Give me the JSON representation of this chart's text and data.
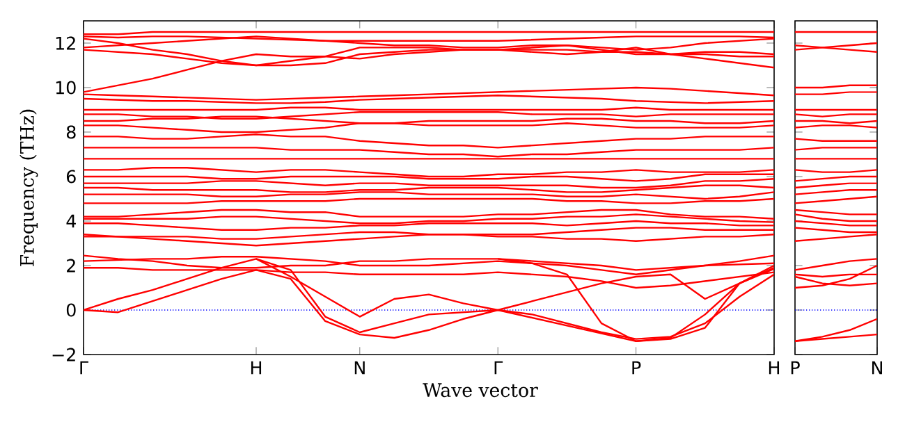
{
  "chart_data": [
    {
      "type": "line",
      "xlabel": "Wave vector",
      "ylabel": "Frequency (THz)",
      "ylim": [
        -2,
        13
      ],
      "categories": [
        "Γ",
        null,
        null,
        null,
        null,
        "H",
        null,
        null,
        "N",
        null,
        null,
        null,
        "Γ",
        null,
        null,
        null,
        "P",
        null,
        null,
        null,
        "H"
      ],
      "yticks": [
        {
          "value": -2,
          "label": "−2"
        },
        0,
        2,
        4,
        6,
        8,
        10,
        12
      ],
      "ref_lines": [
        {
          "axis": "y",
          "value": 0,
          "color": "#0000ff",
          "line_style": "dotted"
        }
      ],
      "series": [
        {
          "color": "#ff0000",
          "values": [
            12.4,
            12.4,
            12.5,
            12.5,
            12.5,
            12.5,
            12.5,
            12.5,
            12.5,
            12.5,
            12.5,
            12.5,
            12.5,
            12.5,
            12.5,
            12.5,
            12.5,
            12.5,
            12.5,
            12.5,
            12.5
          ]
        },
        {
          "color": "#ff0000",
          "values": [
            12.3,
            12.25,
            12.3,
            12.3,
            12.25,
            12.2,
            12.15,
            12.1,
            12.1,
            12.1,
            12.1,
            12.1,
            12.1,
            12.15,
            12.2,
            12.25,
            12.3,
            12.3,
            12.3,
            12.3,
            12.25
          ]
        },
        {
          "color": "#ff0000",
          "values": [
            11.8,
            11.9,
            12.0,
            12.1,
            12.2,
            12.3,
            12.2,
            12.1,
            12.0,
            11.9,
            11.9,
            11.8,
            11.8,
            11.9,
            11.9,
            11.8,
            11.7,
            11.8,
            12.0,
            12.1,
            12.2
          ]
        },
        {
          "color": "#ff0000",
          "values": [
            11.7,
            11.6,
            11.5,
            11.3,
            11.1,
            11.0,
            11.2,
            11.4,
            11.8,
            11.8,
            11.8,
            11.7,
            11.7,
            11.7,
            11.7,
            11.6,
            11.6,
            11.5,
            11.5,
            11.4,
            11.4
          ]
        },
        {
          "color": "#ff0000",
          "values": [
            12.2,
            12.0,
            11.7,
            11.5,
            11.2,
            11.0,
            11.0,
            11.1,
            11.5,
            11.6,
            11.7,
            11.7,
            11.7,
            11.6,
            11.5,
            11.6,
            11.8,
            11.5,
            11.3,
            11.1,
            10.9
          ]
        },
        {
          "color": "#ff0000",
          "values": [
            9.8,
            10.1,
            10.4,
            10.8,
            11.2,
            11.5,
            11.4,
            11.4,
            11.3,
            11.5,
            11.6,
            11.7,
            11.7,
            11.8,
            11.9,
            11.7,
            11.5,
            11.5,
            11.6,
            11.6,
            11.5
          ]
        },
        {
          "color": "#ff0000",
          "values": [
            9.7,
            9.65,
            9.6,
            9.55,
            9.5,
            9.45,
            9.5,
            9.55,
            9.6,
            9.65,
            9.7,
            9.75,
            9.8,
            9.85,
            9.9,
            9.95,
            10.0,
            9.95,
            9.85,
            9.75,
            9.65
          ]
        },
        {
          "color": "#ff0000",
          "values": [
            9.5,
            9.45,
            9.4,
            9.4,
            9.35,
            9.3,
            9.3,
            9.35,
            9.45,
            9.5,
            9.55,
            9.6,
            9.65,
            9.6,
            9.55,
            9.5,
            9.4,
            9.35,
            9.3,
            9.35,
            9.4
          ]
        },
        {
          "color": "#ff0000",
          "values": [
            9.0,
            9.0,
            9.0,
            9.0,
            9.0,
            9.0,
            9.1,
            9.1,
            9.0,
            9.0,
            9.0,
            9.0,
            9.0,
            9.0,
            9.0,
            9.0,
            9.1,
            9.0,
            9.0,
            9.0,
            9.0
          ]
        },
        {
          "color": "#ff0000",
          "values": [
            8.8,
            8.8,
            8.7,
            8.7,
            8.6,
            8.6,
            8.7,
            8.8,
            8.9,
            8.9,
            8.9,
            8.9,
            8.9,
            8.8,
            8.8,
            8.8,
            8.7,
            8.8,
            8.8,
            8.8,
            8.8
          ]
        },
        {
          "color": "#ff0000",
          "values": [
            8.5,
            8.5,
            8.6,
            8.6,
            8.7,
            8.7,
            8.6,
            8.5,
            8.4,
            8.4,
            8.5,
            8.5,
            8.5,
            8.5,
            8.6,
            8.6,
            8.5,
            8.5,
            8.4,
            8.4,
            8.5
          ]
        },
        {
          "color": "#ff0000",
          "values": [
            8.3,
            8.3,
            8.2,
            8.1,
            8.0,
            8.0,
            8.1,
            8.2,
            8.4,
            8.4,
            8.3,
            8.3,
            8.3,
            8.3,
            8.4,
            8.3,
            8.2,
            8.2,
            8.2,
            8.2,
            8.3
          ]
        },
        {
          "color": "#ff0000",
          "values": [
            7.8,
            7.8,
            7.7,
            7.7,
            7.8,
            7.9,
            7.8,
            7.8,
            7.6,
            7.5,
            7.4,
            7.4,
            7.3,
            7.4,
            7.5,
            7.6,
            7.7,
            7.7,
            7.8,
            7.8,
            7.8
          ]
        },
        {
          "color": "#ff0000",
          "values": [
            7.3,
            7.3,
            7.3,
            7.3,
            7.3,
            7.3,
            7.2,
            7.2,
            7.2,
            7.1,
            7.0,
            7.0,
            6.9,
            7.0,
            7.0,
            7.1,
            7.2,
            7.2,
            7.2,
            7.2,
            7.3
          ]
        },
        {
          "color": "#ff0000",
          "values": [
            6.8,
            6.8,
            6.8,
            6.8,
            6.8,
            6.8,
            6.8,
            6.8,
            6.8,
            6.8,
            6.8,
            6.8,
            6.8,
            6.8,
            6.8,
            6.8,
            6.8,
            6.8,
            6.8,
            6.8,
            6.8
          ]
        },
        {
          "color": "#ff0000",
          "values": [
            6.3,
            6.3,
            6.4,
            6.4,
            6.3,
            6.2,
            6.3,
            6.3,
            6.2,
            6.1,
            6.0,
            6.0,
            6.1,
            6.1,
            6.2,
            6.2,
            6.3,
            6.2,
            6.2,
            6.2,
            6.3
          ]
        },
        {
          "color": "#ff0000",
          "values": [
            6.0,
            6.0,
            6.0,
            6.0,
            5.9,
            5.9,
            6.0,
            6.0,
            6.0,
            6.0,
            5.9,
            5.9,
            5.9,
            6.0,
            6.0,
            5.9,
            5.8,
            5.9,
            6.1,
            6.1,
            6.1
          ]
        },
        {
          "color": "#ff0000",
          "values": [
            5.7,
            5.7,
            5.7,
            5.7,
            5.8,
            5.8,
            5.7,
            5.6,
            5.7,
            5.7,
            5.6,
            5.6,
            5.6,
            5.6,
            5.6,
            5.5,
            5.5,
            5.6,
            5.8,
            5.8,
            5.9
          ]
        },
        {
          "color": "#ff0000",
          "values": [
            5.5,
            5.5,
            5.4,
            5.4,
            5.4,
            5.4,
            5.3,
            5.3,
            5.4,
            5.4,
            5.5,
            5.5,
            5.5,
            5.4,
            5.3,
            5.3,
            5.4,
            5.5,
            5.6,
            5.6,
            5.5
          ]
        },
        {
          "color": "#ff0000",
          "values": [
            5.2,
            5.2,
            5.2,
            5.2,
            5.1,
            5.1,
            5.2,
            5.2,
            5.3,
            5.3,
            5.2,
            5.2,
            5.2,
            5.2,
            5.1,
            5.1,
            5.2,
            5.1,
            5.0,
            5.1,
            5.3
          ]
        },
        {
          "color": "#ff0000",
          "values": [
            4.8,
            4.8,
            4.8,
            4.8,
            4.9,
            4.9,
            4.9,
            4.9,
            5.0,
            5.0,
            5.0,
            5.0,
            5.0,
            5.0,
            4.9,
            4.9,
            4.8,
            4.8,
            4.9,
            4.9,
            5.0
          ]
        },
        {
          "color": "#ff0000",
          "values": [
            4.2,
            4.2,
            4.3,
            4.4,
            4.5,
            4.5,
            4.4,
            4.4,
            4.2,
            4.2,
            4.2,
            4.2,
            4.3,
            4.3,
            4.4,
            4.5,
            4.5,
            4.3,
            4.2,
            4.2,
            4.1
          ]
        },
        {
          "color": "#ff0000",
          "values": [
            4.1,
            4.1,
            4.1,
            4.1,
            4.2,
            4.2,
            4.1,
            4.0,
            3.9,
            3.9,
            4.0,
            4.0,
            4.1,
            4.1,
            4.2,
            4.2,
            4.3,
            4.2,
            4.1,
            4.0,
            3.95
          ]
        },
        {
          "color": "#ff0000",
          "values": [
            3.9,
            3.9,
            3.8,
            3.7,
            3.6,
            3.6,
            3.7,
            3.7,
            3.8,
            3.8,
            3.9,
            3.9,
            3.9,
            3.9,
            3.8,
            3.9,
            4.0,
            3.9,
            3.9,
            3.8,
            3.8
          ]
        },
        {
          "color": "#ff0000",
          "values": [
            3.3,
            3.3,
            3.3,
            3.3,
            3.2,
            3.2,
            3.3,
            3.4,
            3.5,
            3.5,
            3.4,
            3.4,
            3.4,
            3.4,
            3.5,
            3.6,
            3.7,
            3.7,
            3.6,
            3.6,
            3.6
          ]
        },
        {
          "color": "#ff0000",
          "values": [
            3.4,
            3.3,
            3.2,
            3.1,
            3.0,
            2.9,
            3.0,
            3.1,
            3.2,
            3.3,
            3.4,
            3.4,
            3.3,
            3.3,
            3.2,
            3.2,
            3.1,
            3.2,
            3.3,
            3.3,
            3.4
          ]
        },
        {
          "color": "#ff0000",
          "values": [
            2.45,
            2.3,
            2.2,
            2.0,
            1.9,
            1.9,
            2.0,
            2.0,
            2.2,
            2.2,
            2.3,
            2.3,
            2.3,
            2.2,
            2.1,
            2.0,
            1.8,
            1.9,
            2.0,
            2.05,
            2.1
          ]
        },
        {
          "color": "#ff0000",
          "values": [
            2.2,
            2.25,
            2.3,
            2.3,
            2.4,
            2.4,
            2.3,
            2.2,
            2.0,
            2.0,
            2.0,
            2.1,
            2.2,
            2.1,
            2.0,
            1.8,
            1.6,
            1.8,
            2.0,
            2.2,
            2.45
          ]
        },
        {
          "color": "#ff0000",
          "values": [
            1.9,
            1.9,
            1.8,
            1.8,
            1.8,
            1.8,
            1.7,
            1.7,
            1.6,
            1.6,
            1.6,
            1.6,
            1.7,
            1.6,
            1.5,
            1.3,
            1.0,
            1.1,
            1.3,
            1.5,
            1.7
          ]
        },
        {
          "color": "#ff0000",
          "values": [
            0,
            -0.1,
            0.4,
            0.9,
            1.4,
            1.8,
            1.4,
            -0.5,
            -1.1,
            -1.25,
            -0.9,
            -0.4,
            0,
            -0.35,
            -0.7,
            -1.05,
            -1.4,
            -1.25,
            -0.2,
            1.2,
            1.9
          ]
        },
        {
          "color": "#ff0000",
          "values": [
            null,
            null,
            null,
            null,
            null,
            2.3,
            1.8,
            -0.3,
            -1.0,
            -0.6,
            -0.2,
            -0.1,
            0,
            0.4,
            0.8,
            1.2,
            1.5,
            1.6,
            0.5,
            1.2,
            2.0
          ]
        },
        {
          "color": "#ff0000",
          "values": [
            0,
            0.5,
            0.9,
            1.4,
            1.9,
            2.3,
            1.5,
            0.6,
            -0.3,
            0.5,
            0.7,
            0.3,
            0,
            -0.2,
            -0.6,
            -1.0,
            -1.3,
            -1.2,
            -0.6,
            0.6,
            1.6
          ]
        },
        {
          "color": "#ff0000",
          "values": [
            null,
            null,
            null,
            null,
            null,
            null,
            null,
            null,
            null,
            null,
            null,
            null,
            2.3,
            2.1,
            1.6,
            -0.6,
            -1.4,
            -1.3,
            -0.8,
            1.2,
            1.85
          ]
        }
      ]
    },
    {
      "type": "line",
      "ylim": [
        -2,
        13
      ],
      "tick_labels": "x",
      "categories": [
        "P",
        null,
        null,
        "N"
      ],
      "yticks": [
        -2,
        0,
        2,
        4,
        6,
        8,
        10,
        12
      ],
      "ref_lines": [
        {
          "axis": "y",
          "value": 0,
          "color": "#0000ff",
          "line_style": "dotted"
        }
      ],
      "series": [
        {
          "color": "#ff0000",
          "values": [
            12.5,
            12.5,
            12.5,
            12.5
          ]
        },
        {
          "color": "#ff0000",
          "values": [
            11.9,
            11.8,
            11.7,
            11.6
          ]
        },
        {
          "color": "#ff0000",
          "values": [
            11.7,
            11.8,
            11.9,
            12.0
          ]
        },
        {
          "color": "#ff0000",
          "values": [
            10.0,
            10.0,
            10.1,
            10.1
          ]
        },
        {
          "color": "#ff0000",
          "values": [
            9.7,
            9.7,
            9.8,
            9.8
          ]
        },
        {
          "color": "#ff0000",
          "values": [
            9.0,
            9.0,
            9.0,
            9.0
          ]
        },
        {
          "color": "#ff0000",
          "values": [
            8.8,
            8.7,
            8.8,
            8.8
          ]
        },
        {
          "color": "#ff0000",
          "values": [
            8.5,
            8.5,
            8.4,
            8.5
          ]
        },
        {
          "color": "#ff0000",
          "values": [
            8.2,
            8.3,
            8.3,
            8.2
          ]
        },
        {
          "color": "#ff0000",
          "values": [
            7.7,
            7.6,
            7.6,
            7.6
          ]
        },
        {
          "color": "#ff0000",
          "values": [
            7.2,
            7.3,
            7.3,
            7.3
          ]
        },
        {
          "color": "#ff0000",
          "values": [
            6.8,
            6.8,
            6.8,
            6.8
          ]
        },
        {
          "color": "#ff0000",
          "values": [
            6.3,
            6.2,
            6.2,
            6.3
          ]
        },
        {
          "color": "#ff0000",
          "values": [
            5.8,
            5.9,
            6.0,
            6.0
          ]
        },
        {
          "color": "#ff0000",
          "values": [
            5.5,
            5.6,
            5.7,
            5.7
          ]
        },
        {
          "color": "#ff0000",
          "values": [
            5.2,
            5.3,
            5.4,
            5.4
          ]
        },
        {
          "color": "#ff0000",
          "values": [
            4.8,
            4.9,
            5.0,
            5.1
          ]
        },
        {
          "color": "#ff0000",
          "values": [
            4.5,
            4.4,
            4.3,
            4.3
          ]
        },
        {
          "color": "#ff0000",
          "values": [
            4.3,
            4.1,
            4.0,
            4.0
          ]
        },
        {
          "color": "#ff0000",
          "values": [
            4.0,
            3.9,
            3.8,
            3.8
          ]
        },
        {
          "color": "#ff0000",
          "values": [
            3.7,
            3.6,
            3.5,
            3.5
          ]
        },
        {
          "color": "#ff0000",
          "values": [
            3.1,
            3.2,
            3.3,
            3.4
          ]
        },
        {
          "color": "#ff0000",
          "values": [
            1.8,
            2.0,
            2.2,
            2.3
          ]
        },
        {
          "color": "#ff0000",
          "values": [
            1.6,
            1.5,
            1.6,
            1.6
          ]
        },
        {
          "color": "#ff0000",
          "values": [
            1.0,
            1.1,
            1.4,
            2.0
          ]
        },
        {
          "color": "#ff0000",
          "values": [
            1.5,
            1.2,
            1.1,
            1.2
          ]
        },
        {
          "color": "#ff0000",
          "values": [
            -1.4,
            -1.2,
            -0.9,
            -0.4
          ]
        },
        {
          "color": "#ff0000",
          "values": [
            -1.4,
            -1.3,
            -1.2,
            -1.1
          ]
        }
      ]
    }
  ]
}
